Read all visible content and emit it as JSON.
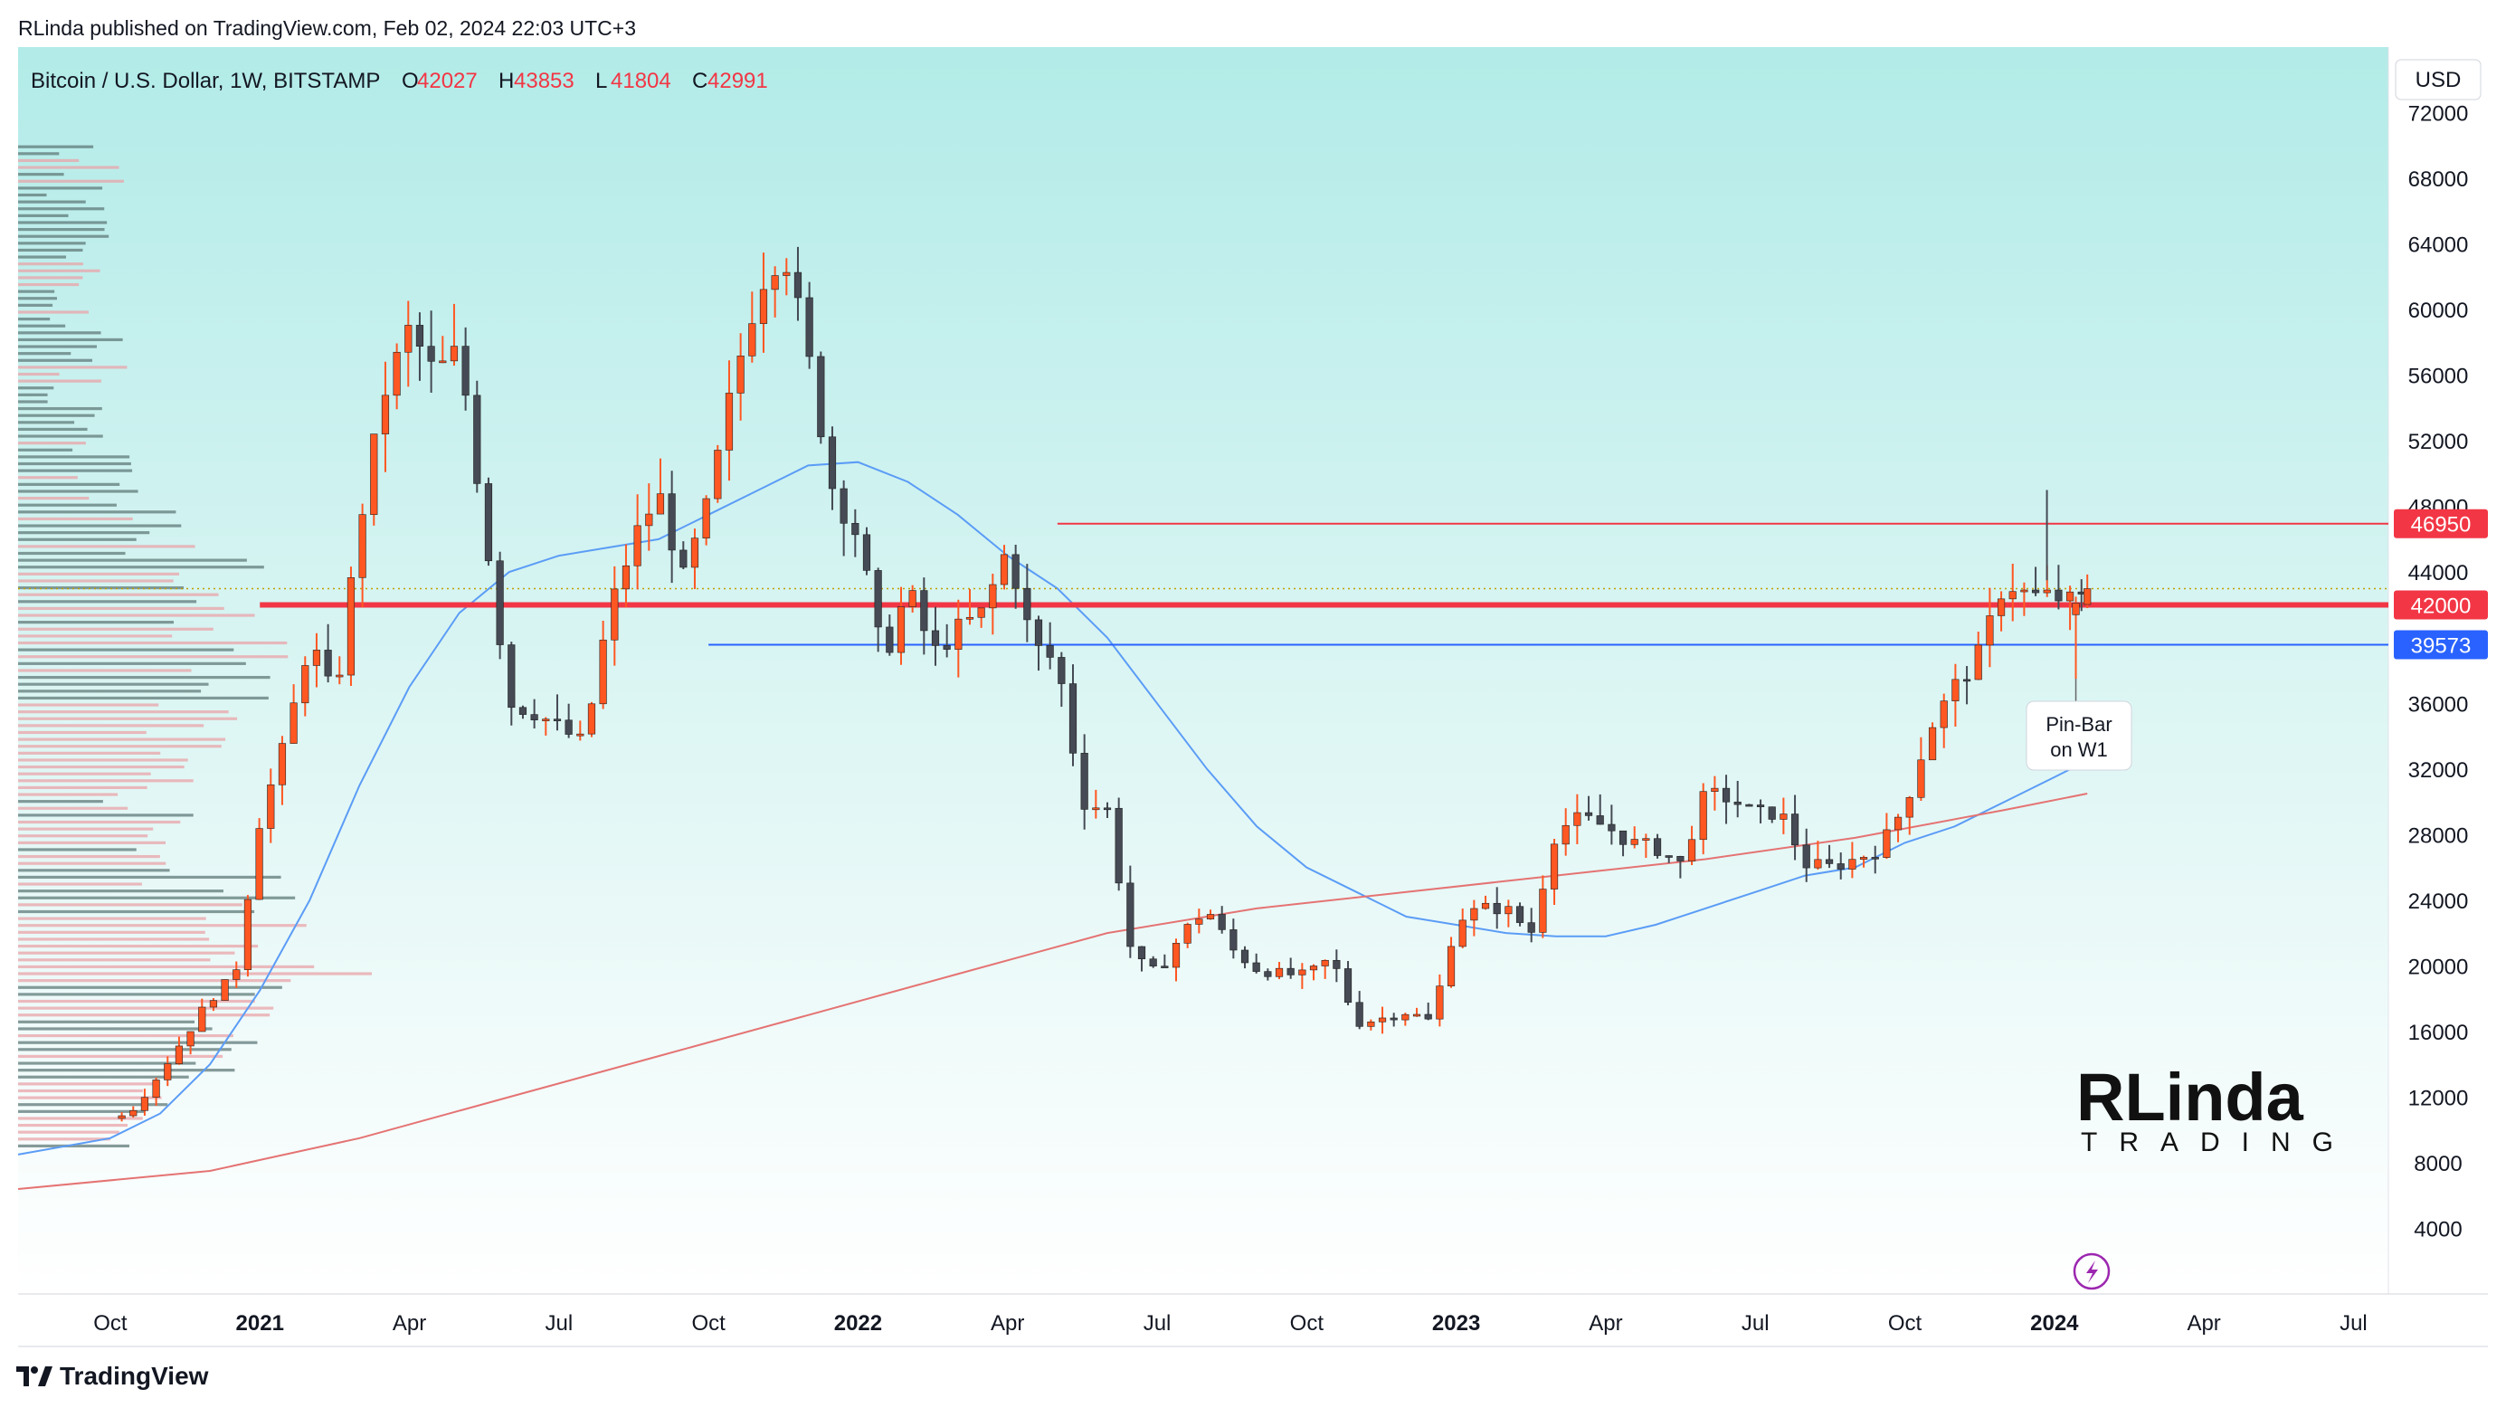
{
  "header": {
    "published_line": "RLinda published on TradingView.com, Feb 02, 2024 22:03 UTC+3",
    "symbol": "Bitcoin / U.S. Dollar, 1W, BITSTAMP",
    "ohlc": [
      {
        "label": "O",
        "value": "42027"
      },
      {
        "label": "H",
        "value": "43853"
      },
      {
        "label": "L",
        "value": "41804"
      },
      {
        "label": "C",
        "value": "42991"
      }
    ]
  },
  "currency_label": "USD",
  "footer": {
    "brand": "TradingView"
  },
  "watermark": {
    "line1": "RLinda",
    "line2": "TRADING"
  },
  "annotation": {
    "line1": "Pin-Bar",
    "line2": "on W1"
  },
  "colors": {
    "bull": "#ff5722",
    "bear": "#454a54",
    "level_red": "#f23645",
    "level_blue": "#2962ff",
    "ma_fast": "#5b9cf6",
    "ma_slow": "#e57373",
    "bg_top": "#b2ebe8",
    "bg_bottom": "#ffffff",
    "volume_bull": "#e9a3a8",
    "volume_bear": "#5f7a78"
  },
  "chart_data": {
    "type": "candlestick",
    "title": "Bitcoin / U.S. Dollar, 1W, BITSTAMP",
    "ylabel": "USD",
    "ylim": [
      0,
      76000
    ],
    "y_ticks": [
      4000,
      8000,
      12000,
      16000,
      20000,
      24000,
      28000,
      32000,
      36000,
      40000,
      44000,
      48000,
      52000,
      56000,
      60000,
      64000,
      68000,
      72000
    ],
    "x_ticks": [
      {
        "label": "Oct",
        "year": false,
        "t": 0.0
      },
      {
        "label": "2021",
        "year": true,
        "t": 3.0
      },
      {
        "label": "Apr",
        "year": false,
        "t": 6.0
      },
      {
        "label": "Jul",
        "year": false,
        "t": 9.0
      },
      {
        "label": "Oct",
        "year": false,
        "t": 12.0
      },
      {
        "label": "2022",
        "year": true,
        "t": 15.0
      },
      {
        "label": "Apr",
        "year": false,
        "t": 18.0
      },
      {
        "label": "Jul",
        "year": false,
        "t": 21.0
      },
      {
        "label": "Oct",
        "year": false,
        "t": 24.0
      },
      {
        "label": "2023",
        "year": true,
        "t": 27.0
      },
      {
        "label": "Apr",
        "year": false,
        "t": 30.0
      },
      {
        "label": "Jul",
        "year": false,
        "t": 33.0
      },
      {
        "label": "Oct",
        "year": false,
        "t": 36.0
      },
      {
        "label": "2024",
        "year": true,
        "t": 39.0
      },
      {
        "label": "Apr",
        "year": false,
        "t": 42.0
      },
      {
        "label": "Jul",
        "year": false,
        "t": 45.0
      }
    ],
    "x_range_months": [
      -1.85,
      45.7
    ],
    "levels": [
      {
        "value": 46950,
        "label": "46950",
        "color": "#f23645",
        "from_month": 19.0,
        "width": 2
      },
      {
        "value": 42000,
        "label": "42000",
        "color": "#f23645",
        "from_month": 3.0,
        "width": 6
      },
      {
        "value": 39573,
        "label": "39573",
        "color": "#2962ff",
        "from_month": 12.0,
        "width": 2
      }
    ],
    "last_price_dotted": 42991,
    "anchors": [
      [
        0.0,
        10700
      ],
      [
        0.5,
        11400
      ],
      [
        1.0,
        13500
      ],
      [
        1.5,
        15700
      ],
      [
        2.0,
        18000
      ],
      [
        2.5,
        19400
      ],
      [
        3.0,
        29000
      ],
      [
        3.5,
        33500
      ],
      [
        4.0,
        40000
      ],
      [
        4.5,
        36000
      ],
      [
        5.0,
        47000
      ],
      [
        5.5,
        55000
      ],
      [
        6.0,
        58800
      ],
      [
        6.5,
        56000
      ],
      [
        7.0,
        57500
      ],
      [
        7.5,
        47000
      ],
      [
        8.0,
        36000
      ],
      [
        8.5,
        35500
      ],
      [
        9.0,
        34500
      ],
      [
        9.5,
        33500
      ],
      [
        10.0,
        41500
      ],
      [
        10.5,
        46000
      ],
      [
        11.0,
        48800
      ],
      [
        11.5,
        43500
      ],
      [
        12.0,
        48200
      ],
      [
        12.5,
        55500
      ],
      [
        13.0,
        61500
      ],
      [
        13.5,
        64000
      ],
      [
        14.0,
        57000
      ],
      [
        14.5,
        49000
      ],
      [
        15.0,
        46200
      ],
      [
        15.5,
        38500
      ],
      [
        16.0,
        43000
      ],
      [
        16.5,
        39000
      ],
      [
        17.0,
        40500
      ],
      [
        17.5,
        41500
      ],
      [
        18.0,
        45500
      ],
      [
        18.5,
        39500
      ],
      [
        19.0,
        38500
      ],
      [
        19.5,
        30000
      ],
      [
        20.0,
        29500
      ],
      [
        20.5,
        20500
      ],
      [
        21.0,
        19500
      ],
      [
        21.5,
        22000
      ],
      [
        22.0,
        23500
      ],
      [
        22.5,
        21000
      ],
      [
        23.0,
        19800
      ],
      [
        23.5,
        19500
      ],
      [
        24.0,
        19400
      ],
      [
        24.5,
        20500
      ],
      [
        25.0,
        16500
      ],
      [
        25.5,
        16800
      ],
      [
        26.0,
        17200
      ],
      [
        26.5,
        16600
      ],
      [
        27.0,
        22800
      ],
      [
        27.5,
        23500
      ],
      [
        28.0,
        23500
      ],
      [
        28.5,
        22000
      ],
      [
        29.0,
        28300
      ],
      [
        29.5,
        29000
      ],
      [
        30.0,
        28500
      ],
      [
        30.5,
        27500
      ],
      [
        31.0,
        27200
      ],
      [
        31.5,
        26200
      ],
      [
        32.0,
        30500
      ],
      [
        32.5,
        30200
      ],
      [
        33.0,
        29200
      ],
      [
        33.5,
        29400
      ],
      [
        34.0,
        26200
      ],
      [
        34.5,
        26000
      ],
      [
        35.0,
        26500
      ],
      [
        35.5,
        27200
      ],
      [
        36.0,
        29800
      ],
      [
        36.5,
        34500
      ],
      [
        37.0,
        37000
      ],
      [
        37.5,
        39000
      ],
      [
        38.0,
        43500
      ],
      [
        38.5,
        42500
      ],
      [
        39.0,
        42500
      ],
      [
        39.5,
        42000
      ],
      [
        39.66,
        43000
      ]
    ],
    "current_candle": {
      "open": 42027,
      "high": 43853,
      "low": 41804,
      "close": 42991
    },
    "series": [
      {
        "name": "MA fast",
        "color": "#5b9cf6",
        "points": [
          [
            -1.85,
            8500
          ],
          [
            0,
            9500
          ],
          [
            1,
            11000
          ],
          [
            2,
            14000
          ],
          [
            3,
            18500
          ],
          [
            4,
            24000
          ],
          [
            5,
            31000
          ],
          [
            6,
            37000
          ],
          [
            7,
            41500
          ],
          [
            8,
            44000
          ],
          [
            9,
            45000
          ],
          [
            10,
            45500
          ],
          [
            11,
            46000
          ],
          [
            12,
            47500
          ],
          [
            13,
            49000
          ],
          [
            14,
            50500
          ],
          [
            15,
            50700
          ],
          [
            16,
            49500
          ],
          [
            17,
            47500
          ],
          [
            18,
            45000
          ],
          [
            19,
            43000
          ],
          [
            20,
            40000
          ],
          [
            21,
            36000
          ],
          [
            22,
            32000
          ],
          [
            23,
            28500
          ],
          [
            24,
            26000
          ],
          [
            25,
            24500
          ],
          [
            26,
            23000
          ],
          [
            27,
            22500
          ],
          [
            28,
            22000
          ],
          [
            29,
            21800
          ],
          [
            30,
            21800
          ],
          [
            31,
            22500
          ],
          [
            32,
            23500
          ],
          [
            33,
            24500
          ],
          [
            34,
            25500
          ],
          [
            35,
            26000
          ],
          [
            36,
            27500
          ],
          [
            37,
            28500
          ],
          [
            38,
            30000
          ],
          [
            39,
            31500
          ],
          [
            39.66,
            32500
          ]
        ]
      },
      {
        "name": "MA slow",
        "color": "#e57373",
        "points": [
          [
            -1.85,
            6400
          ],
          [
            2,
            7500
          ],
          [
            5,
            9500
          ],
          [
            8,
            12000
          ],
          [
            11,
            14500
          ],
          [
            14,
            17000
          ],
          [
            17,
            19500
          ],
          [
            20,
            22000
          ],
          [
            23,
            23500
          ],
          [
            26,
            24500
          ],
          [
            29,
            25500
          ],
          [
            32,
            26500
          ],
          [
            35,
            27800
          ],
          [
            38,
            29500
          ],
          [
            39.66,
            30500
          ]
        ]
      }
    ],
    "volume_profile_note": "horizontal volume-by-price histogram on left edge"
  }
}
